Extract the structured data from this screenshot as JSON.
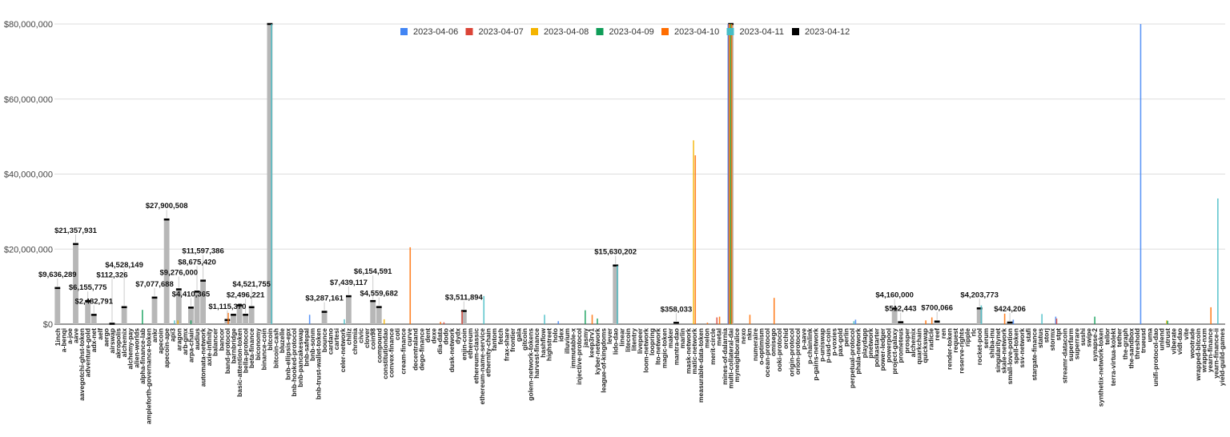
{
  "chart_data": {
    "type": "bar",
    "title": "",
    "xlabel": "",
    "ylabel": "",
    "ylim": [
      0,
      80000000
    ],
    "yticks": [
      "$0",
      "$20,000,000",
      "$40,000,000",
      "$60,000,000",
      "$80,000,000"
    ],
    "ytick_values": [
      0,
      20000000,
      40000000,
      60000000,
      80000000
    ],
    "grid": true,
    "legend_position": "top-center",
    "categories": [
      "1inch",
      "a-benqi",
      "a-joe",
      "aave",
      "aavegotchi-ghst-token",
      "adventure-gold",
      "adx-net",
      "aelf",
      "aergo",
      "airswap",
      "akropolis",
      "alchemix",
      "alchemy-pay",
      "alien-worlds",
      "alpha-finance-lab",
      "ampleforth-governance-token",
      "ankr",
      "apecoin",
      "apecoin-ape",
      "api3",
      "aragon",
      "arb-gmx",
      "arpa-chain",
      "audius",
      "automata-network",
      "axie-infinity",
      "balancer",
      "bancor",
      "band-protocol",
      "barnbridge",
      "basic-attention-token",
      "bella-protocol",
      "beta-finance",
      "biconomy",
      "binance-coin",
      "bitcoin",
      "bitcoin-cash",
      "bluzelle",
      "bnb-ellipsis-epx",
      "bnb-hooked-protocol",
      "bnb-pancakeswap",
      "bnb-safepal",
      "bnb-sonm",
      "bnb-trust-wallet-token",
      "bounce",
      "cardano",
      "cartesi",
      "celer-network",
      "chiliz",
      "chromia",
      "civic",
      "clover",
      "coin98",
      "compound",
      "constitutiondao",
      "convex-finance",
      "coti",
      "cream-finance",
      "curve",
      "decentraland",
      "dego-finance",
      "dent",
      "dexe",
      "dia-data",
      "dodo",
      "dusk-network",
      "dydx",
      "enjin-coin",
      "ethereum",
      "ethereum-classic",
      "ethereum-name-service",
      "ethernity-chain",
      "fantom",
      "fetch",
      "frax-share",
      "frontier",
      "gala",
      "gitcoin",
      "golem-network-tokens",
      "harvest-finance",
      "hashflow",
      "highstreet",
      "holo",
      "idex",
      "illuvium",
      "immutable-x",
      "injective-protocol",
      "jasmy",
      "keep3rv1",
      "kyber-network",
      "league-of-kingdoms",
      "lever",
      "lido-dao",
      "linear",
      "litecoin",
      "litentry",
      "livepeer",
      "loom-network",
      "loopring",
      "lto-network",
      "magic-token",
      "maker",
      "mantra-dao",
      "marlin",
      "mask-network",
      "matic-network",
      "measurable-data-token",
      "melon",
      "merit-circle",
      "metal",
      "mines-of-dalarnia",
      "multi-collateral-dai",
      "myneighboralice",
      "nexo",
      "nkn",
      "numeraire",
      "o-optimism",
      "ocean-protocol",
      "omisego",
      "ooki-protocol",
      "orchid",
      "origin-protocol",
      "orion-protocol",
      "p-aave",
      "p-chainlink",
      "p-gains-network",
      "p-uniswap",
      "p-usd-coin",
      "p-voxies",
      "pax-gold",
      "perlin",
      "perpetual-protocol",
      "phala-network",
      "playdapp",
      "pnetwork",
      "polkastarter",
      "power-ledger",
      "powerpool",
      "project-galaxy",
      "prometeus",
      "prosper",
      "alchemix",
      "quarkchain",
      "quickswap",
      "radicle",
      "reef",
      "ren",
      "render-token",
      "request",
      "reserve-rights",
      "ripple",
      "rlc",
      "rocket-pool",
      "serum",
      "shiba-inu",
      "singularitynet",
      "skale-network",
      "small-love-potion",
      "spell-token",
      "ssv-network",
      "stafi",
      "stargate-finance",
      "status",
      "storj",
      "stormx",
      "stpt",
      "streamr-datacoin",
      "superfarm",
      "superrare",
      "sushi",
      "swipe",
      "synapse-2",
      "synthetix-network-token",
      "tellor",
      "terra-virtua-kolekt",
      "tether",
      "the-graph",
      "the-sandbox",
      "threshold",
      "trueusd",
      "uma",
      "unifi-protocol-dao",
      "unlend",
      "utrust",
      "viberate",
      "vidt-dao",
      "vite",
      "wootrade",
      "wrapped-bitcoin",
      "wrapped-nxm",
      "yearn-finance",
      "yearn-finance-ii",
      "yield-guild-games"
    ],
    "series": [
      {
        "name": "2023-04-06",
        "color": "#4285f4",
        "values": {
          "bnb-sonm": 2500000,
          "idex": 800000,
          "multi-collateral-dai": 85000000,
          "phala-network": 1200000,
          "stpt": 2000000,
          "trueusd": 85000000,
          "spell-token": 1200000
        }
      },
      {
        "name": "2023-04-07",
        "color": "#db4437",
        "values": {
          "enjin-coin": 3500000,
          "dodo": 500000,
          "metal": 1800000,
          "multi-collateral-dai": 85000000,
          "stpt": 1500000
        }
      },
      {
        "name": "2023-04-08",
        "color": "#f4b400",
        "values": {
          "aragon": 1000000,
          "constitutiondao": 1300000,
          "matic-network": 49000000,
          "multi-collateral-dai": 85000000,
          "utrust": 1000000
        }
      },
      {
        "name": "2023-04-09",
        "color": "#0f9d58",
        "values": {
          "alpha-finance-lab": 3800000,
          "arpa-chain": 1000000,
          "jasmy": 3700000,
          "kyber-network": 1500000,
          "multi-collateral-dai": 85000000,
          "synapse-2": 2000000,
          "utrust": 900000
        }
      },
      {
        "name": "2023-04-10",
        "color": "#ff6d01",
        "values": {
          "band-protocol": 3000000,
          "curve": 20500000,
          "dia-data": 600000,
          "keep3rv1": 2500000,
          "matic-network": 45000000,
          "melon": 400000,
          "metal": 2000000,
          "multi-collateral-dai": 85000000,
          "nkn": 2500000,
          "omisego": 7000000,
          "quickswap": 1000000,
          "radicle": 1800000,
          "skale-network": 2800000,
          "yearn-finance": 4500000
        }
      },
      {
        "name": "2023-04-11",
        "color": "#46bdc6",
        "values": {
          "api3": 1000000,
          "bitcoin": 85000000,
          "celer-network": 1300000,
          "ethereum-name-service": 7500000,
          "hashflow": 2500000,
          "lido-dao": 15600000,
          "rocket-pool": 5000000,
          "status": 2700000,
          "perpetual-protocol": 800000,
          "yearn-finance-ii": 33500000
        }
      },
      {
        "name": "2023-04-12",
        "color": "#000000",
        "values": {
          "1inch": 9636289,
          "aave": 21357931,
          "adventure-gold": 6155775,
          "adx-net": 2482791,
          "airswap": 112326,
          "alchemix": 4528149,
          "ankr": 7077688,
          "apecoin-ape": 27900508,
          "aragon": 9276000,
          "arpa-chain": 4410365,
          "audius": 8675420,
          "automata-network": 11597386,
          "band-protocol": 1115370,
          "barnbridge": 2496221,
          "basic-attention-token": 5000000,
          "bella-protocol": 2496221,
          "beta-finance": 4521755,
          "bitcoin": 85000000,
          "bounce": 3287161,
          "chiliz": 7439117,
          "coin98": 6154591,
          "compound": 4559682,
          "enjin-coin": 3511894,
          "lido-dao": 15630202,
          "mantra-dao": 358033,
          "multi-collateral-dai": 85000000,
          "project-galaxy": 4160000,
          "prometeus": 512443,
          "reef": 700066,
          "rocket-pool": 4203773,
          "small-love-potion": 424206
        }
      }
    ],
    "data_labels": {
      "1inch": "$9,636,289",
      "aave": "$21,357,931",
      "adventure-gold": "$6,155,775",
      "adx-net": "$2,482,791",
      "airswap": "$112,326",
      "alchemix": "$4,528,149",
      "ankr": "$7,077,688",
      "apecoin-ape": "$27,900,508",
      "aragon": "$9,276,000",
      "arpa-chain": "$4,410,365",
      "audius": "$8,675,420",
      "automata-network": "$11,597,386",
      "band-protocol": "$1,115,370",
      "bella-protocol": "$2,496,221",
      "beta-finance": "$4,521,755",
      "bounce": "$3,287,161",
      "chiliz": "$7,439,117",
      "coin98": "$6,154,591",
      "compound": "$4,559,682",
      "enjin-coin": "$3,511,894",
      "lido-dao": "$15,630,202",
      "mantra-dao": "$358,033",
      "project-galaxy": "$4,160,000",
      "prometeus": "$512,443",
      "reef": "$700,066",
      "rocket-pool": "$4,203,773",
      "small-love-potion": "$424,206"
    }
  }
}
